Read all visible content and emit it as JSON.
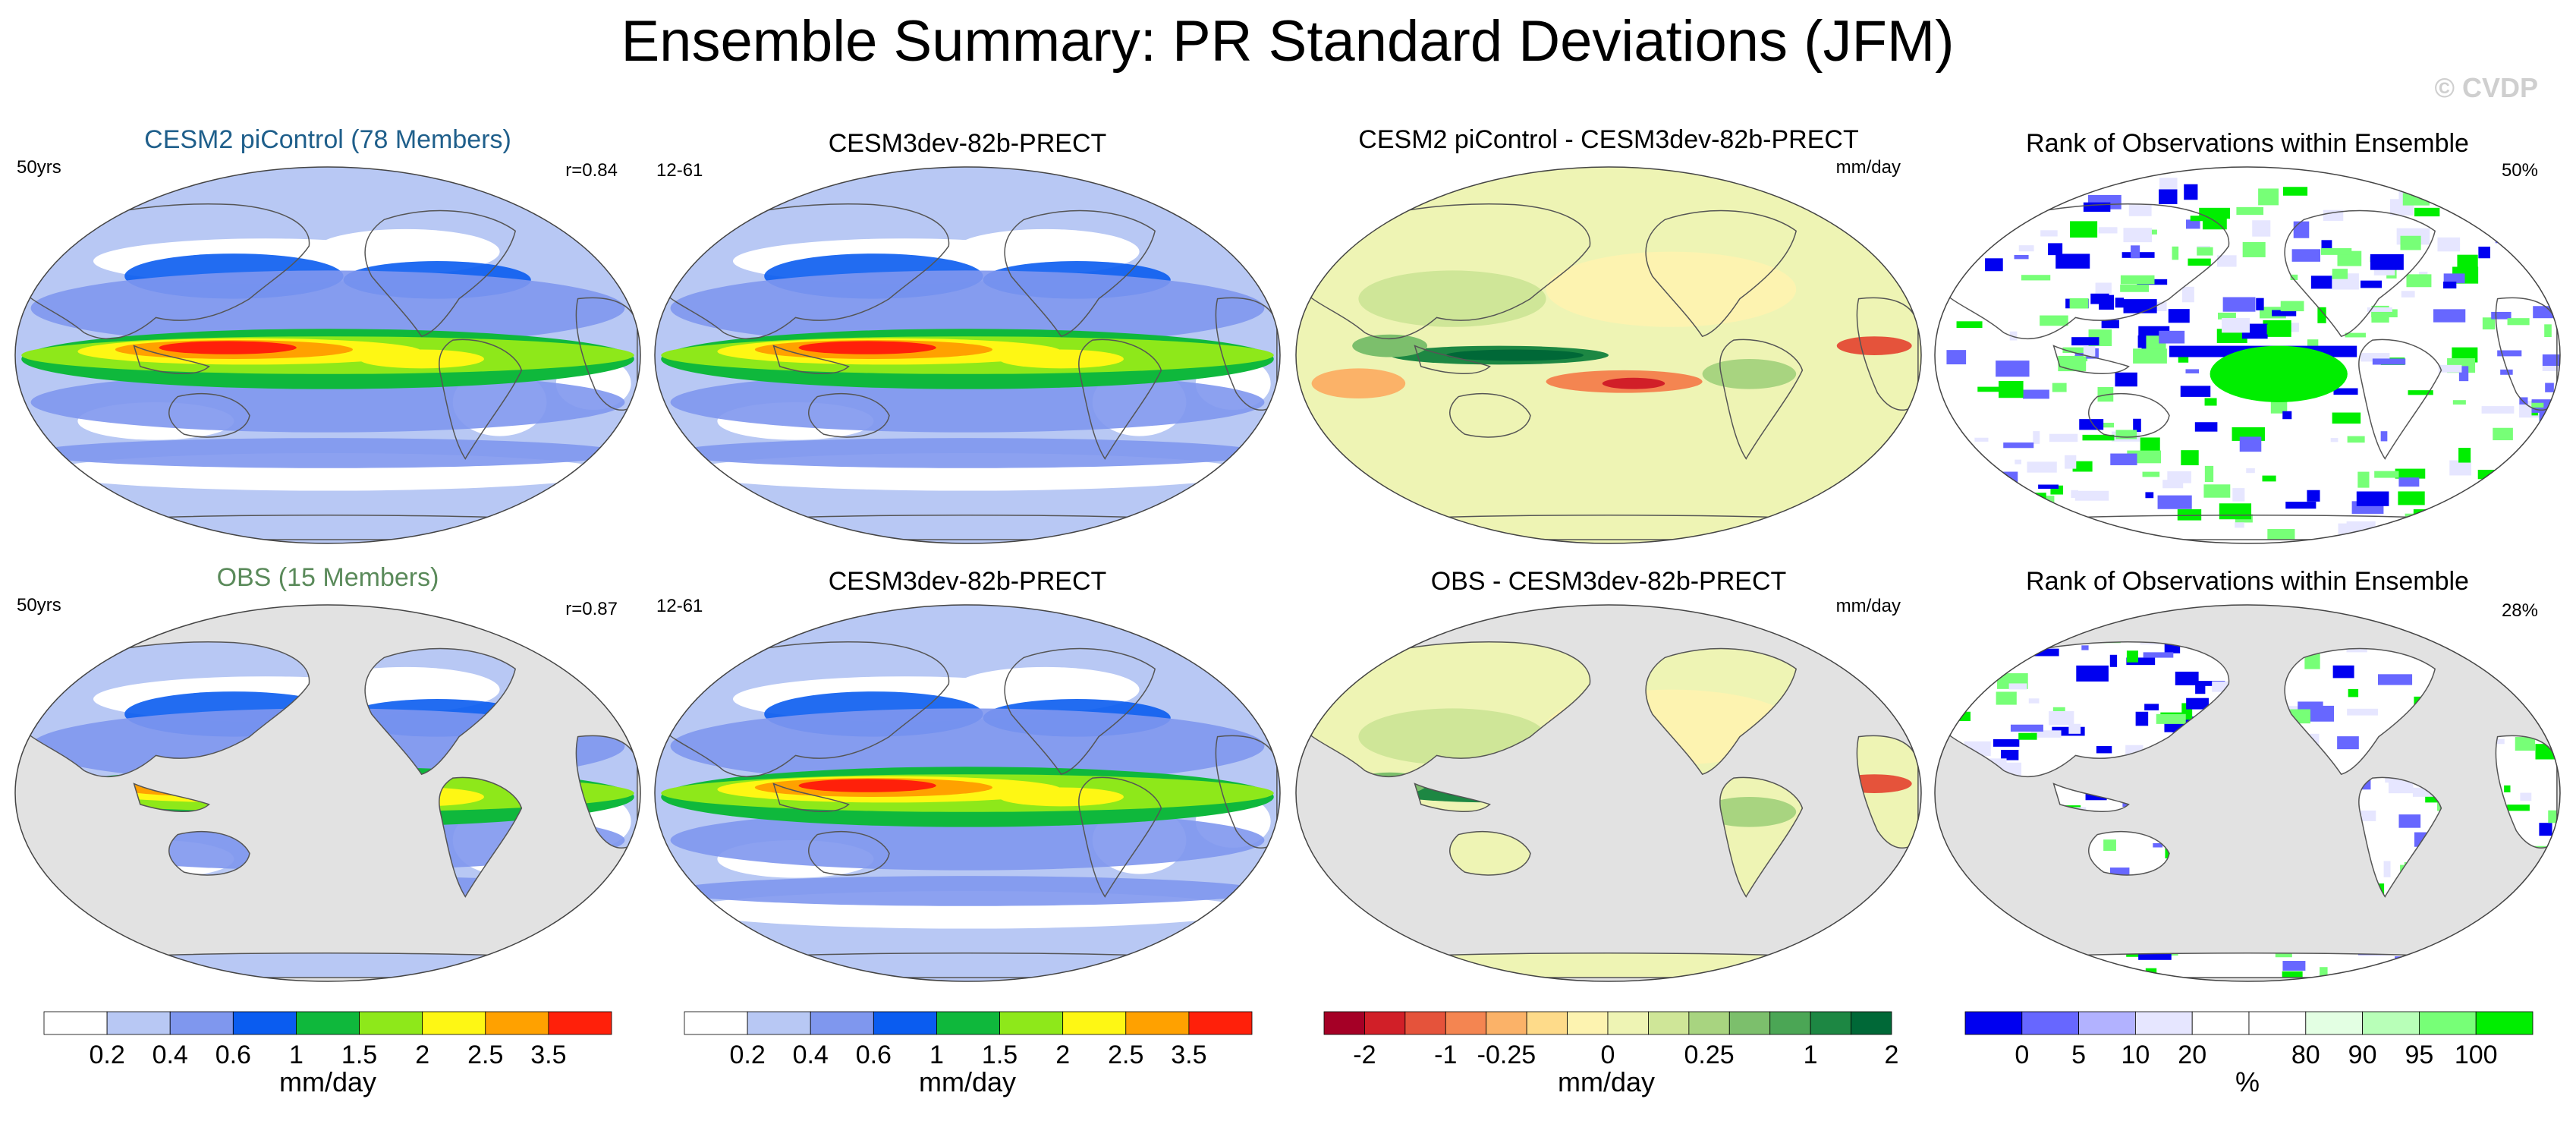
{
  "figure": {
    "title": "Ensemble Summary: PR Standard Deviations (JFM)",
    "watermark": "© CVDP"
  },
  "colors": {
    "panel_title_model": "#1f5f8b",
    "panel_title_obs": "#5a8a5a",
    "land_gray": "#e2e2e2",
    "ocean_white": "#ffffff"
  },
  "chart_data": [
    {
      "type": "heatmap",
      "id": "p1",
      "title": "CESM2 piControl (78 Members)",
      "title_color": "#1f5f8b",
      "left_label": "50yrs",
      "right_label": "r=0.84",
      "scale": "mean",
      "mask_ocean": false
    },
    {
      "type": "heatmap",
      "id": "p2",
      "title": "CESM3dev-82b-PRECT",
      "left_label": "12-61",
      "right_label": "",
      "scale": "mean",
      "mask_ocean": false
    },
    {
      "type": "heatmap",
      "id": "p3",
      "title": "CESM2 piControl - CESM3dev-82b-PRECT",
      "left_label": "",
      "right_label": "mm/day",
      "scale": "diff",
      "mask_ocean": false
    },
    {
      "type": "heatmap",
      "id": "p4",
      "title": "Rank of Observations within Ensemble",
      "left_label": "",
      "right_label": "50%",
      "scale": "rank",
      "mask_ocean": false
    },
    {
      "type": "heatmap",
      "id": "p5",
      "title": "OBS (15 Members)",
      "title_color": "#5a8a5a",
      "left_label": "50yrs",
      "right_label": "r=0.87",
      "scale": "mean",
      "mask_ocean": true
    },
    {
      "type": "heatmap",
      "id": "p6",
      "title": "CESM3dev-82b-PRECT",
      "left_label": "12-61",
      "right_label": "",
      "scale": "mean",
      "mask_ocean": false
    },
    {
      "type": "heatmap",
      "id": "p7",
      "title": "OBS - CESM3dev-82b-PRECT",
      "left_label": "",
      "right_label": "mm/day",
      "scale": "diff",
      "mask_ocean": true
    },
    {
      "type": "heatmap",
      "id": "p8",
      "title": "Rank of Observations within Ensemble",
      "left_label": "",
      "right_label": "28%",
      "scale": "rank",
      "mask_ocean": true
    }
  ],
  "colorbars": [
    {
      "id": "cb1",
      "units": "mm/day",
      "colors": [
        "#ffffff",
        "#b8c8f4",
        "#7f97ee",
        "#0a5cf0",
        "#0fb83c",
        "#8ee81a",
        "#fef714",
        "#ffa100",
        "#ff200a"
      ],
      "labels": [
        "0.2",
        "0.4",
        "0.6",
        "1",
        "1.5",
        "2",
        "2.5",
        "3.5"
      ]
    },
    {
      "id": "cb2",
      "units": "mm/day",
      "colors": [
        "#ffffff",
        "#b8c8f4",
        "#7f97ee",
        "#0a5cf0",
        "#0fb83c",
        "#8ee81a",
        "#fef714",
        "#ffa100",
        "#ff200a"
      ],
      "labels": [
        "0.2",
        "0.4",
        "0.6",
        "1",
        "1.5",
        "2",
        "2.5",
        "3.5"
      ]
    },
    {
      "id": "cb3",
      "units": "mm/day",
      "colors": [
        "#a50026",
        "#d11f28",
        "#e5533b",
        "#f48551",
        "#fbb268",
        "#fedb8a",
        "#fdf3b0",
        "#eef4b4",
        "#cfe698",
        "#a8d480",
        "#7cbf6c",
        "#4ba655",
        "#1d8743",
        "#006837"
      ],
      "labels": [
        "-2",
        "-1",
        "-0.25",
        "0",
        "0.25",
        "1",
        "2"
      ],
      "label_at": [
        1,
        3,
        4.5,
        7,
        9.5,
        12,
        14
      ]
    },
    {
      "id": "cb4",
      "units": "%",
      "colors": [
        "#0000f0",
        "#6767ff",
        "#b2b2ff",
        "#e6e6ff",
        "#ffffff",
        "#ffffff",
        "#e3ffe3",
        "#b8ffb8",
        "#77ff77",
        "#00ee00"
      ],
      "labels": [
        "0",
        "5",
        "10",
        "20",
        "80",
        "90",
        "95",
        "100"
      ],
      "label_at": [
        1,
        2,
        3,
        4,
        6,
        7,
        8,
        9
      ]
    }
  ]
}
